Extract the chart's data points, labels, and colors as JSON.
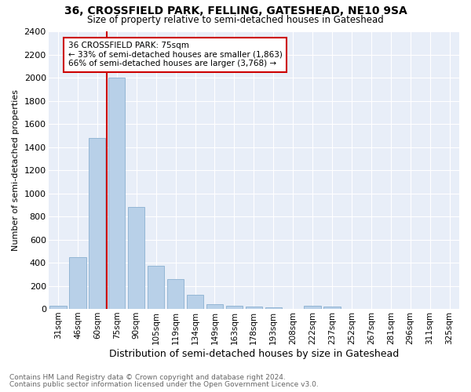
{
  "title1": "36, CROSSFIELD PARK, FELLING, GATESHEAD, NE10 9SA",
  "title2": "Size of property relative to semi-detached houses in Gateshead",
  "xlabel": "Distribution of semi-detached houses by size in Gateshead",
  "ylabel": "Number of semi-detached properties",
  "categories": [
    "31sqm",
    "46sqm",
    "60sqm",
    "75sqm",
    "90sqm",
    "105sqm",
    "119sqm",
    "134sqm",
    "149sqm",
    "163sqm",
    "178sqm",
    "193sqm",
    "208sqm",
    "222sqm",
    "237sqm",
    "252sqm",
    "267sqm",
    "281sqm",
    "296sqm",
    "311sqm",
    "325sqm"
  ],
  "values": [
    30,
    450,
    1480,
    2000,
    880,
    375,
    255,
    125,
    40,
    30,
    20,
    15,
    0,
    30,
    20,
    0,
    0,
    0,
    0,
    0,
    0
  ],
  "bar_color": "#b8d0e8",
  "bar_edge_color": "#8ab0d0",
  "red_line_index": 3,
  "annotation_title": "36 CROSSFIELD PARK: 75sqm",
  "annotation_line1": "← 33% of semi-detached houses are smaller (1,863)",
  "annotation_line2": "66% of semi-detached houses are larger (3,768) →",
  "annotation_box_color": "#ffffff",
  "annotation_border_color": "#cc0000",
  "ylim": [
    0,
    2400
  ],
  "yticks": [
    0,
    200,
    400,
    600,
    800,
    1000,
    1200,
    1400,
    1600,
    1800,
    2000,
    2200,
    2400
  ],
  "footnote1": "Contains HM Land Registry data © Crown copyright and database right 2024.",
  "footnote2": "Contains public sector information licensed under the Open Government Licence v3.0.",
  "plot_bg_color": "#e8eef8",
  "grid_color": "#ffffff",
  "red_line_color": "#cc0000"
}
